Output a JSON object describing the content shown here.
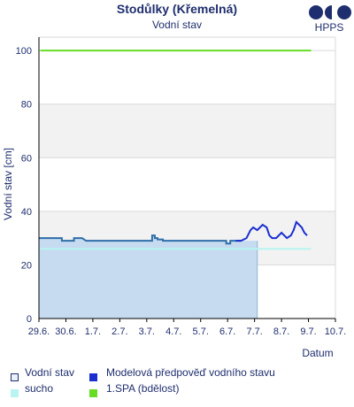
{
  "header": {
    "title": "Stodůlky (Křemelná)",
    "subtitle": "Vodní stav",
    "logo_text": "HPPS"
  },
  "colors": {
    "observed_line": "#2f6ea8",
    "observed_fill": "#c6dbf0",
    "forecast_line": "#1a2fd0",
    "sucho": "#b8f5f0",
    "spa1": "#66dd22",
    "band": "#f2f2f2",
    "grid": "#d9d9d9",
    "axis_text": "#1f2e6e"
  },
  "chart_data": {
    "type": "line",
    "title": "Stodůlky (Křemelná)",
    "subtitle": "Vodní stav",
    "xlabel": "Datum",
    "ylabel": "Vodní stav [cm]",
    "ylim": [
      0,
      105
    ],
    "xlim": [
      "2024-06-29",
      "2024-07-10"
    ],
    "y_ticks": [
      0,
      20,
      40,
      60,
      80,
      100
    ],
    "x_tick_labels": [
      "29.6.",
      "30.6.",
      "1.7.",
      "2.7.",
      "3.7.",
      "4.7.",
      "5.7.",
      "6.7.",
      "7.7.",
      "8.7.",
      "9.7.",
      "10.7."
    ],
    "grid": true,
    "legend_position": "bottom",
    "series": [
      {
        "name": "Vodní stav",
        "kind": "observed",
        "x_days": [
          0,
          0.85,
          0.85,
          1.3,
          1.3,
          1.6,
          1.6,
          1.75,
          1.75,
          2.0,
          2.5,
          3.0,
          3.5,
          4.0,
          4.2,
          4.2,
          4.3,
          4.3,
          4.4,
          4.4,
          4.6,
          4.6,
          5.0,
          5.5,
          6.0,
          6.5,
          6.95,
          6.95,
          7.1,
          7.1,
          7.5
        ],
        "y": [
          30,
          30,
          29,
          29,
          30,
          30,
          30,
          29,
          29,
          29,
          29,
          29,
          29,
          29,
          29,
          31,
          31,
          30,
          30,
          29.5,
          29.5,
          29,
          29,
          29,
          29,
          29,
          29,
          28,
          28,
          29,
          29
        ]
      },
      {
        "name": "Modelová předpověď vodního stavu",
        "kind": "forecast",
        "x_days": [
          7.3,
          7.5,
          7.7,
          7.85,
          7.95,
          8.1,
          8.3,
          8.45,
          8.55,
          8.65,
          8.8,
          9.0,
          9.2,
          9.35,
          9.45,
          9.55,
          9.65,
          9.75,
          9.85,
          9.95
        ],
        "y": [
          29,
          29,
          30,
          33,
          34,
          33,
          35,
          34,
          31,
          30,
          30,
          32,
          30,
          31,
          33,
          36,
          35,
          34,
          32,
          31
        ]
      },
      {
        "name": "sucho",
        "kind": "threshold",
        "value": 26
      },
      {
        "name": "1.SPA (bdělost)",
        "kind": "threshold",
        "value": 100
      }
    ],
    "observed_area_end_day": 8.1
  },
  "legend": [
    {
      "label": "Vodní stav",
      "key": "observed"
    },
    {
      "label": "Modelová předpověď vodního stavu",
      "key": "forecast"
    },
    {
      "label": "sucho",
      "key": "sucho"
    },
    {
      "label": "1.SPA (bdělost)",
      "key": "spa1"
    }
  ]
}
